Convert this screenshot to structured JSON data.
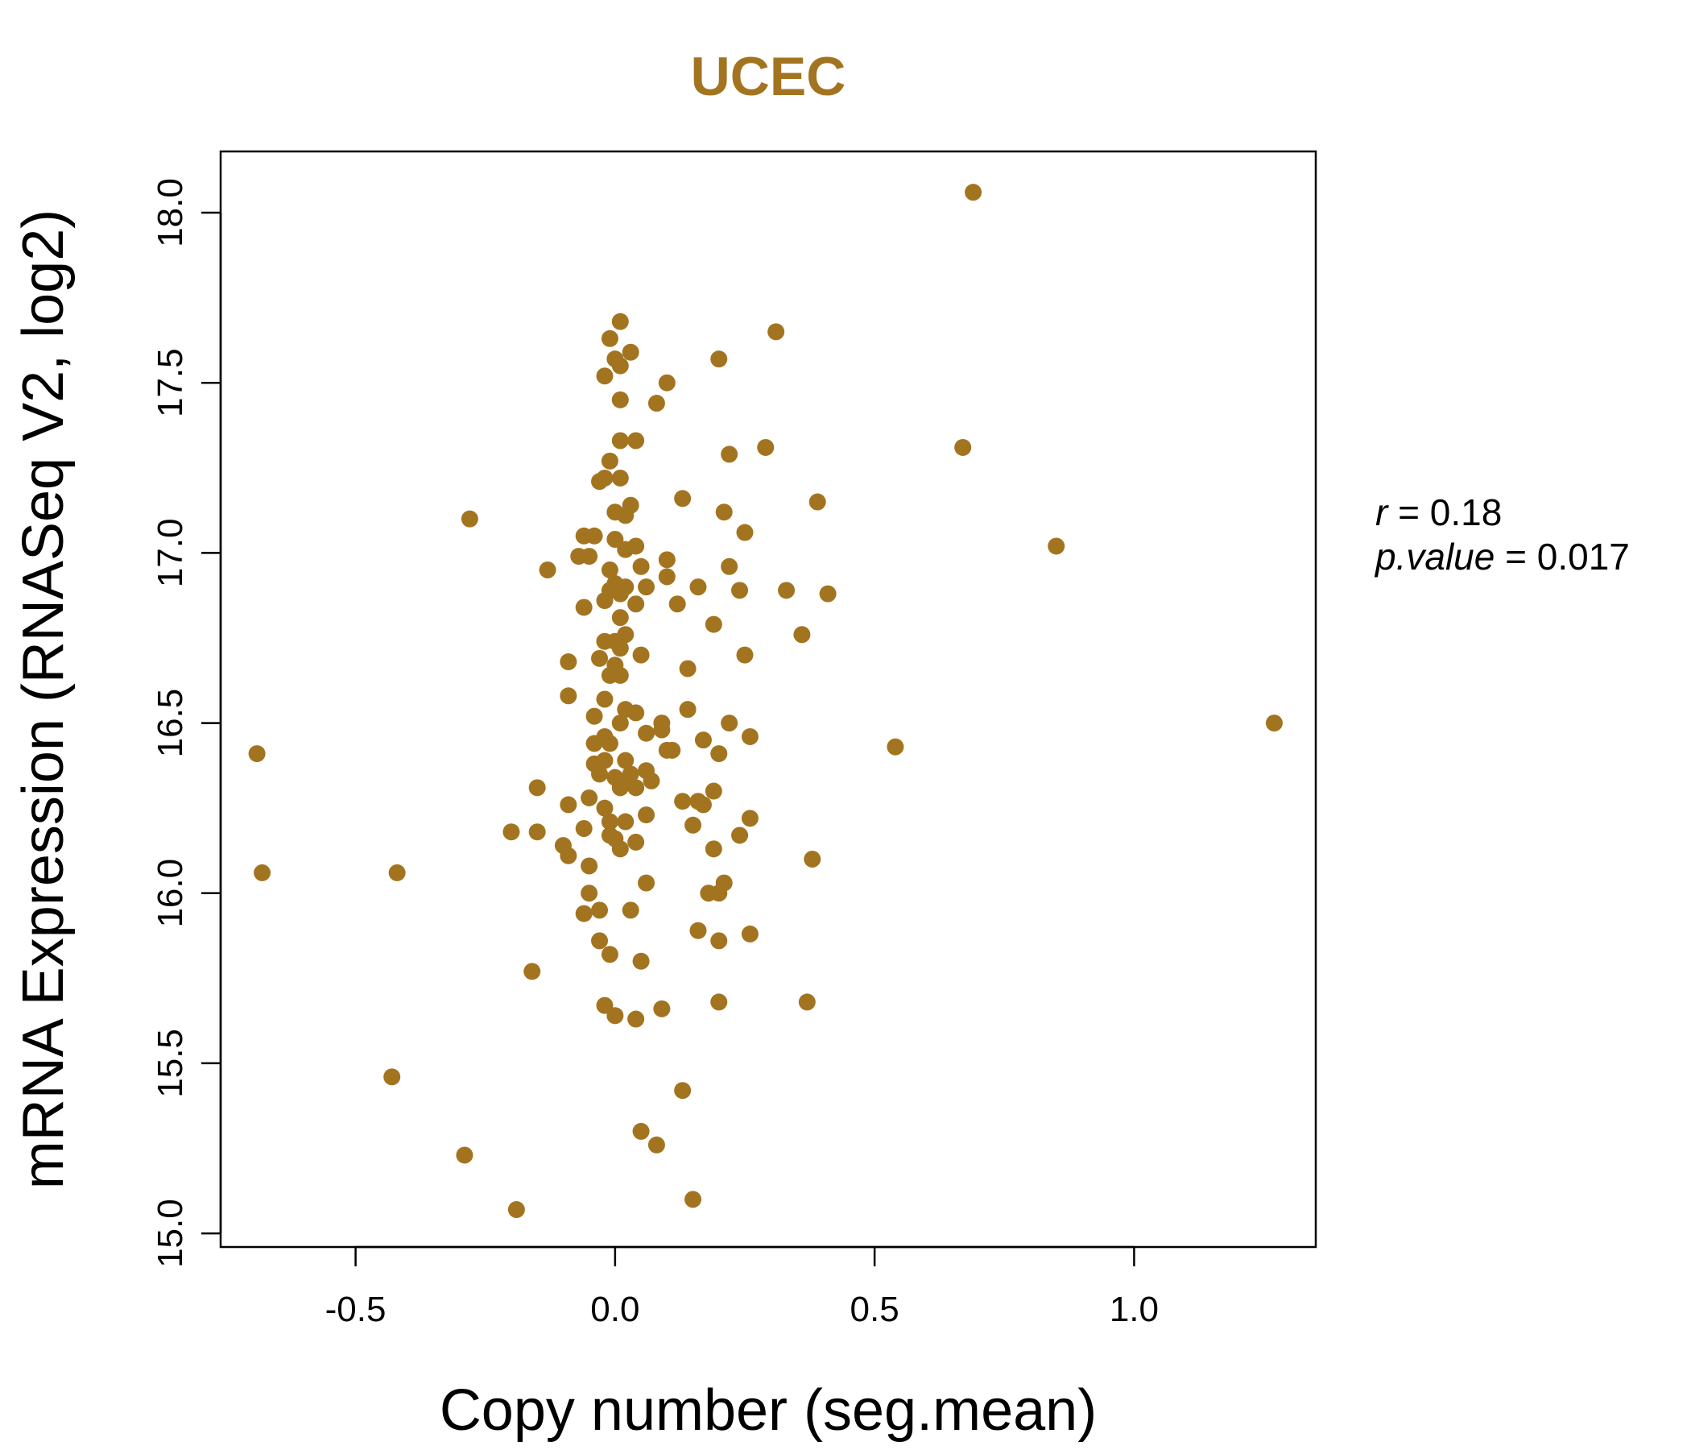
{
  "colors": {
    "accent": "#a37420",
    "axis": "#000000",
    "background": "#ffffff"
  },
  "chart_data": {
    "type": "scatter",
    "title": "UCEC",
    "xlabel": "Copy number (seg.mean)",
    "ylabel": "mRNA Expression (RNASeq V2, log2)",
    "xlim": [
      -0.76,
      1.35
    ],
    "ylim": [
      14.96,
      18.18
    ],
    "xticks": [
      -0.5,
      0.0,
      0.5,
      1.0
    ],
    "xtick_labels": [
      "-0.5",
      "0.0",
      "0.5",
      "1.0"
    ],
    "yticks": [
      15.0,
      15.5,
      16.0,
      16.5,
      17.0,
      17.5,
      18.0
    ],
    "ytick_labels": [
      "15.0",
      "15.5",
      "16.0",
      "16.5",
      "17.0",
      "17.5",
      "18.0"
    ],
    "grid": false,
    "stats": {
      "r_label": "r",
      "r_value": "0.18",
      "p_label": "p.value",
      "p_value": "0.017"
    },
    "points": [
      [
        -0.69,
        16.41
      ],
      [
        -0.68,
        16.06
      ],
      [
        -0.42,
        16.06
      ],
      [
        -0.43,
        15.46
      ],
      [
        -0.29,
        15.23
      ],
      [
        -0.28,
        17.1
      ],
      [
        -0.19,
        15.07
      ],
      [
        -0.2,
        16.18
      ],
      [
        -0.16,
        15.77
      ],
      [
        -0.15,
        16.31
      ],
      [
        -0.15,
        16.18
      ],
      [
        -0.13,
        16.95
      ],
      [
        -0.1,
        16.14
      ],
      [
        -0.09,
        16.68
      ],
      [
        -0.09,
        16.58
      ],
      [
        -0.09,
        16.26
      ],
      [
        -0.09,
        16.11
      ],
      [
        -0.07,
        16.99
      ],
      [
        -0.06,
        17.05
      ],
      [
        -0.06,
        16.84
      ],
      [
        -0.06,
        16.19
      ],
      [
        -0.06,
        15.94
      ],
      [
        -0.05,
        16.99
      ],
      [
        -0.05,
        16.28
      ],
      [
        -0.05,
        16.08
      ],
      [
        -0.05,
        16.0
      ],
      [
        -0.04,
        17.05
      ],
      [
        -0.04,
        16.52
      ],
      [
        -0.04,
        16.44
      ],
      [
        -0.04,
        16.38
      ],
      [
        -0.03,
        17.21
      ],
      [
        -0.03,
        16.69
      ],
      [
        -0.03,
        16.35
      ],
      [
        -0.03,
        15.95
      ],
      [
        -0.03,
        15.86
      ],
      [
        -0.02,
        17.52
      ],
      [
        -0.02,
        17.22
      ],
      [
        -0.02,
        16.86
      ],
      [
        -0.02,
        16.74
      ],
      [
        -0.02,
        16.57
      ],
      [
        -0.02,
        16.46
      ],
      [
        -0.02,
        16.39
      ],
      [
        -0.02,
        16.25
      ],
      [
        -0.02,
        15.67
      ],
      [
        -0.01,
        17.63
      ],
      [
        -0.01,
        17.27
      ],
      [
        -0.01,
        16.95
      ],
      [
        -0.01,
        16.89
      ],
      [
        -0.01,
        16.64
      ],
      [
        -0.01,
        16.44
      ],
      [
        -0.01,
        16.21
      ],
      [
        -0.01,
        16.17
      ],
      [
        -0.01,
        15.82
      ],
      [
        0.0,
        17.57
      ],
      [
        0.0,
        17.12
      ],
      [
        0.0,
        17.04
      ],
      [
        0.0,
        16.91
      ],
      [
        0.0,
        16.74
      ],
      [
        0.0,
        16.67
      ],
      [
        0.0,
        16.34
      ],
      [
        0.0,
        16.16
      ],
      [
        0.0,
        15.64
      ],
      [
        0.01,
        17.68
      ],
      [
        0.01,
        17.55
      ],
      [
        0.01,
        17.22
      ],
      [
        0.01,
        16.88
      ],
      [
        0.01,
        16.81
      ],
      [
        0.01,
        16.72
      ],
      [
        0.01,
        16.64
      ],
      [
        0.01,
        16.5
      ],
      [
        0.01,
        16.31
      ],
      [
        0.01,
        16.13
      ],
      [
        0.01,
        17.45
      ],
      [
        0.01,
        17.33
      ],
      [
        0.02,
        17.11
      ],
      [
        0.02,
        17.01
      ],
      [
        0.02,
        16.9
      ],
      [
        0.02,
        16.76
      ],
      [
        0.02,
        16.54
      ],
      [
        0.02,
        16.39
      ],
      [
        0.02,
        16.33
      ],
      [
        0.02,
        16.21
      ],
      [
        0.03,
        17.59
      ],
      [
        0.03,
        17.14
      ],
      [
        0.03,
        16.35
      ],
      [
        0.03,
        15.95
      ],
      [
        0.04,
        17.33
      ],
      [
        0.04,
        17.02
      ],
      [
        0.04,
        16.85
      ],
      [
        0.04,
        16.53
      ],
      [
        0.04,
        16.31
      ],
      [
        0.04,
        16.15
      ],
      [
        0.04,
        15.63
      ],
      [
        0.05,
        16.7
      ],
      [
        0.05,
        15.8
      ],
      [
        0.05,
        15.3
      ],
      [
        0.05,
        16.96
      ],
      [
        0.06,
        16.9
      ],
      [
        0.06,
        16.47
      ],
      [
        0.06,
        16.36
      ],
      [
        0.06,
        16.23
      ],
      [
        0.06,
        16.03
      ],
      [
        0.07,
        16.33
      ],
      [
        0.08,
        17.44
      ],
      [
        0.08,
        15.26
      ],
      [
        0.09,
        16.48
      ],
      [
        0.09,
        15.66
      ],
      [
        0.09,
        16.5
      ],
      [
        0.1,
        16.98
      ],
      [
        0.1,
        16.93
      ],
      [
        0.1,
        16.42
      ],
      [
        0.1,
        17.5
      ],
      [
        0.11,
        16.42
      ],
      [
        0.12,
        16.85
      ],
      [
        0.13,
        17.16
      ],
      [
        0.13,
        16.27
      ],
      [
        0.13,
        15.42
      ],
      [
        0.14,
        16.66
      ],
      [
        0.14,
        16.54
      ],
      [
        0.15,
        16.2
      ],
      [
        0.15,
        15.1
      ],
      [
        0.16,
        16.9
      ],
      [
        0.16,
        16.27
      ],
      [
        0.16,
        15.89
      ],
      [
        0.17,
        16.45
      ],
      [
        0.17,
        16.26
      ],
      [
        0.18,
        16.0
      ],
      [
        0.19,
        16.3
      ],
      [
        0.19,
        16.79
      ],
      [
        0.19,
        16.13
      ],
      [
        0.2,
        17.57
      ],
      [
        0.2,
        16.41
      ],
      [
        0.2,
        16.0
      ],
      [
        0.2,
        15.86
      ],
      [
        0.2,
        15.68
      ],
      [
        0.21,
        17.12
      ],
      [
        0.21,
        16.03
      ],
      [
        0.22,
        17.29
      ],
      [
        0.22,
        16.96
      ],
      [
        0.22,
        16.5
      ],
      [
        0.24,
        16.89
      ],
      [
        0.24,
        16.17
      ],
      [
        0.25,
        17.06
      ],
      [
        0.25,
        16.7
      ],
      [
        0.26,
        16.22
      ],
      [
        0.26,
        15.88
      ],
      [
        0.26,
        16.46
      ],
      [
        0.29,
        17.31
      ],
      [
        0.31,
        17.65
      ],
      [
        0.33,
        16.89
      ],
      [
        0.36,
        16.76
      ],
      [
        0.37,
        15.68
      ],
      [
        0.38,
        16.1
      ],
      [
        0.39,
        17.15
      ],
      [
        0.41,
        16.88
      ],
      [
        0.54,
        16.43
      ],
      [
        0.67,
        17.31
      ],
      [
        0.69,
        18.06
      ],
      [
        0.85,
        17.02
      ],
      [
        1.27,
        16.5
      ]
    ]
  }
}
